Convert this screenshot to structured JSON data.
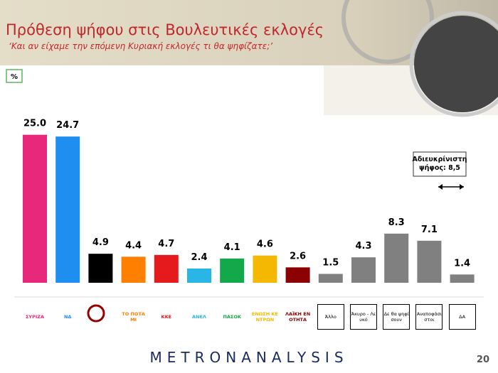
{
  "chart_data": {
    "type": "bar",
    "title": "Πρόθεση ψήφου στις Βουλευτικές εκλογές",
    "subtitle": "‘Και αν είχαμε την επόμενη Κυριακή εκλογές τι θα ψηφίζατε;’",
    "ylabel": "%",
    "categories": [
      "ΣΥΡΙΖΑ",
      "ΝΔ",
      null,
      "ΤΟ ΠΟΤΑΜΙ",
      "ΚΚΕ",
      "ΑΝΕΛ",
      "ΠΑΣΟΚ",
      "ΕΝΩΣΗ ΚΕΝΤΡΩΝ",
      "ΛΑΪΚΗ ΕΝΟΤΗΤΑ",
      "Άλλο",
      "Άκυρο - Λευκό",
      "Δε θα ψηφίσουν",
      "Αναποφάσιστοι",
      "ΔΑ"
    ],
    "values": [
      25.0,
      24.7,
      4.9,
      4.4,
      4.7,
      2.4,
      4.1,
      4.6,
      2.6,
      1.5,
      4.3,
      8.3,
      7.1,
      1.4
    ],
    "value_labels": [
      "25.0",
      "24.7",
      "4.9",
      "4.4",
      "4.7",
      "2.4",
      "4.1",
      "4.6",
      "2.6",
      "1.5",
      "4.3",
      "8.3",
      "7.1",
      "1.4"
    ],
    "colors": [
      "#e8287a",
      "#1e8ff0",
      "#000000",
      "#ff7f00",
      "#e41a1c",
      "#29b6e6",
      "#13a84a",
      "#f5b800",
      "#8b0000",
      "#808080",
      "#808080",
      "#808080",
      "#808080",
      "#808080"
    ],
    "ylim": [
      0,
      30
    ],
    "annotation": "Αδιευκρίνιστη ψήφος: 8,5"
  },
  "footer": {
    "brand": "METRONANALYSIS",
    "page": "20"
  }
}
